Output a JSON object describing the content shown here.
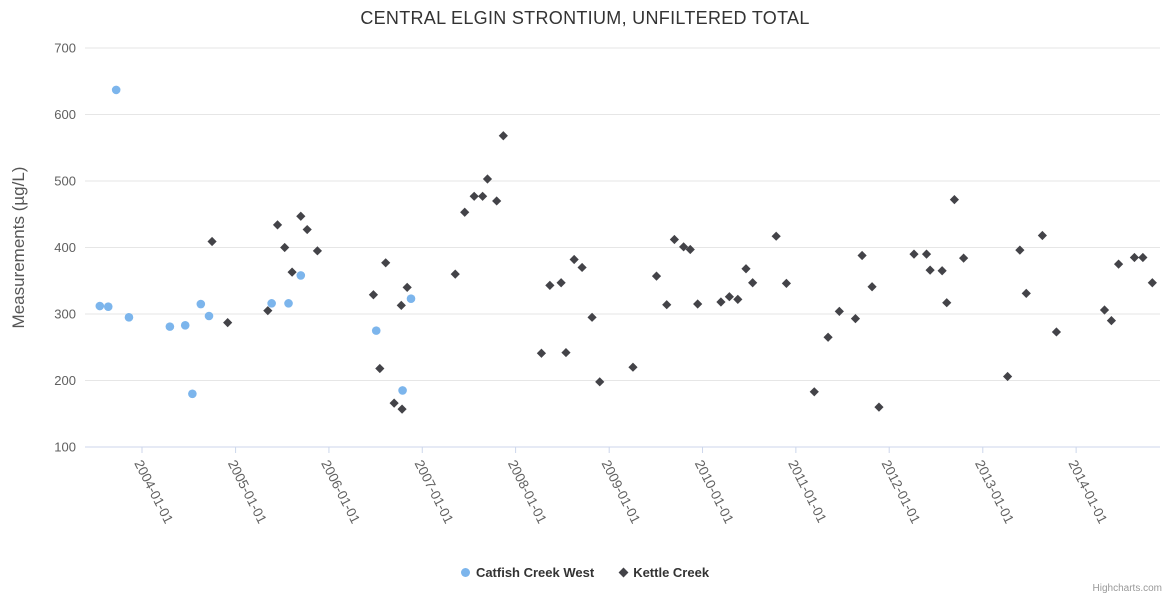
{
  "title": "CENTRAL ELGIN STRONTIUM, UNFILTERED TOTAL",
  "credits": "Highcharts.com",
  "colors": {
    "title_text": "#333333",
    "axis_label_text": "#606060",
    "axis_title_text": "#555555",
    "gridline": "#e6e6e6",
    "axis_line": "#ccd6eb",
    "legend_text": "#333333",
    "credits_text": "#999999",
    "series_catfish": "#7cb5ec",
    "series_kettle": "#434348"
  },
  "chart_data": {
    "type": "scatter",
    "title": "CENTRAL ELGIN STRONTIUM, UNFILTERED TOTAL",
    "xlabel": "",
    "ylabel": "Measurements (µg/L)",
    "grid": "horizontal",
    "legend_position": "bottom-center",
    "x_axis": {
      "type": "datetime",
      "label_rotation_deg": 63,
      "tick_labels": [
        "2004-01-01",
        "2005-01-01",
        "2006-01-01",
        "2007-01-01",
        "2008-01-01",
        "2009-01-01",
        "2010-01-01",
        "2011-01-01",
        "2012-01-01",
        "2013-01-01",
        "2014-01-01"
      ]
    },
    "y_axis": {
      "min": 100,
      "max": 700,
      "tick_interval": 100,
      "ticks": [
        100,
        200,
        300,
        400,
        500,
        600,
        700
      ]
    },
    "series": [
      {
        "name": "Catfish Creek West",
        "color": "#7cb5ec",
        "marker": "circle",
        "points": [
          [
            "2003-07-20",
            312
          ],
          [
            "2003-08-22",
            311
          ],
          [
            "2003-09-22",
            637
          ],
          [
            "2003-11-11",
            295
          ],
          [
            "2004-04-19",
            281
          ],
          [
            "2004-06-18",
            283
          ],
          [
            "2004-07-16",
            180
          ],
          [
            "2004-08-18",
            315
          ],
          [
            "2004-09-19",
            297
          ],
          [
            "2005-05-22",
            316
          ],
          [
            "2005-07-27",
            316
          ],
          [
            "2005-09-13",
            358
          ],
          [
            "2006-07-05",
            275
          ],
          [
            "2006-10-16",
            185
          ],
          [
            "2006-11-18",
            323
          ]
        ]
      },
      {
        "name": "Kettle Creek",
        "color": "#434348",
        "marker": "diamond",
        "points": [
          [
            "2004-10-01",
            409
          ],
          [
            "2004-12-01",
            287
          ],
          [
            "2005-05-07",
            305
          ],
          [
            "2005-06-14",
            434
          ],
          [
            "2005-07-12",
            400
          ],
          [
            "2005-08-10",
            363
          ],
          [
            "2005-09-13",
            447
          ],
          [
            "2005-10-08",
            427
          ],
          [
            "2005-11-17",
            395
          ],
          [
            "2006-06-24",
            329
          ],
          [
            "2006-07-19",
            218
          ],
          [
            "2006-08-11",
            377
          ],
          [
            "2006-09-13",
            166
          ],
          [
            "2006-10-11",
            313
          ],
          [
            "2006-10-14",
            157
          ],
          [
            "2006-11-03",
            340
          ],
          [
            "2007-05-10",
            360
          ],
          [
            "2007-06-16",
            453
          ],
          [
            "2007-07-23",
            477
          ],
          [
            "2007-08-25",
            477
          ],
          [
            "2007-09-13",
            503
          ],
          [
            "2007-10-19",
            470
          ],
          [
            "2007-11-14",
            568
          ],
          [
            "2008-04-11",
            241
          ],
          [
            "2008-05-14",
            343
          ],
          [
            "2008-06-27",
            347
          ],
          [
            "2008-07-16",
            242
          ],
          [
            "2008-08-17",
            382
          ],
          [
            "2008-09-17",
            370
          ],
          [
            "2008-10-26",
            295
          ],
          [
            "2008-11-25",
            198
          ],
          [
            "2009-04-04",
            220
          ],
          [
            "2009-07-05",
            357
          ],
          [
            "2009-08-14",
            314
          ],
          [
            "2009-09-13",
            412
          ],
          [
            "2009-10-19",
            401
          ],
          [
            "2009-11-14",
            397
          ],
          [
            "2009-12-13",
            315
          ],
          [
            "2010-03-14",
            318
          ],
          [
            "2010-04-16",
            326
          ],
          [
            "2010-05-19",
            322
          ],
          [
            "2010-06-20",
            368
          ],
          [
            "2010-07-16",
            347
          ],
          [
            "2010-10-16",
            417
          ],
          [
            "2010-11-25",
            346
          ],
          [
            "2011-03-14",
            183
          ],
          [
            "2011-05-07",
            265
          ],
          [
            "2011-06-20",
            304
          ],
          [
            "2011-08-22",
            293
          ],
          [
            "2011-09-17",
            388
          ],
          [
            "2011-10-26",
            341
          ],
          [
            "2011-11-22",
            160
          ],
          [
            "2012-04-07",
            390
          ],
          [
            "2012-05-26",
            390
          ],
          [
            "2012-06-09",
            366
          ],
          [
            "2012-07-26",
            365
          ],
          [
            "2012-08-13",
            317
          ],
          [
            "2012-09-12",
            472
          ],
          [
            "2012-10-18",
            384
          ],
          [
            "2013-04-08",
            206
          ],
          [
            "2013-05-26",
            396
          ],
          [
            "2013-06-20",
            331
          ],
          [
            "2013-08-22",
            418
          ],
          [
            "2013-10-16",
            273
          ],
          [
            "2014-04-22",
            306
          ],
          [
            "2014-05-19",
            290
          ],
          [
            "2014-06-16",
            375
          ],
          [
            "2014-08-17",
            385
          ],
          [
            "2014-09-19",
            385
          ],
          [
            "2014-10-26",
            347
          ]
        ]
      }
    ]
  }
}
